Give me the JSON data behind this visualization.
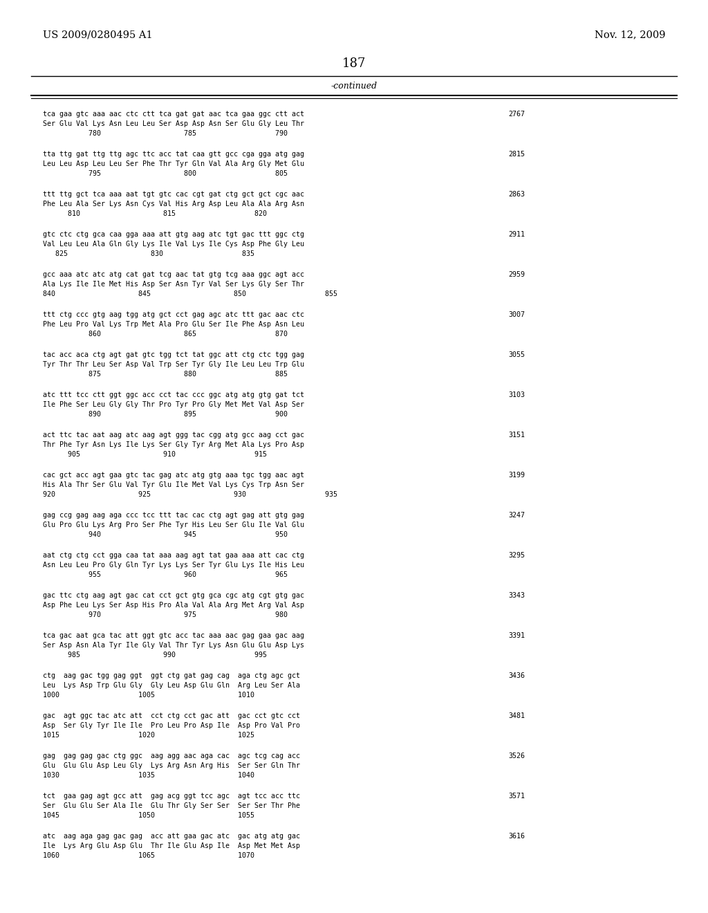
{
  "patent_number": "US 2009/0280495 A1",
  "date": "Nov. 12, 2009",
  "page_number": "187",
  "continued_label": "-continued",
  "background_color": "#ffffff",
  "text_color": "#000000",
  "sequence_blocks": [
    {
      "dna": "tca gaa gtc aaa aac ctc ctt tca gat gat aac tca gaa ggc ctt act",
      "aa": "Ser Glu Val Lys Asn Leu Leu Ser Asp Asp Asn Ser Glu Gly Leu Thr",
      "nums": "           780                    785                   790",
      "num_right": "2767"
    },
    {
      "dna": "tta ttg gat ttg ttg agc ttc acc tat caa gtt gcc cga gga atg gag",
      "aa": "Leu Leu Asp Leu Leu Ser Phe Thr Tyr Gln Val Ala Arg Gly Met Glu",
      "nums": "           795                    800                   805",
      "num_right": "2815"
    },
    {
      "dna": "ttt ttg gct tca aaa aat tgt gtc cac cgt gat ctg gct gct cgc aac",
      "aa": "Phe Leu Ala Ser Lys Asn Cys Val His Arg Asp Leu Ala Ala Arg Asn",
      "nums": "      810                    815                   820",
      "num_right": "2863"
    },
    {
      "dna": "gtc ctc ctg gca caa gga aaa att gtg aag atc tgt gac ttt ggc ctg",
      "aa": "Val Leu Leu Ala Gln Gly Lys Ile Val Lys Ile Cys Asp Phe Gly Leu",
      "nums": "   825                    830                   835",
      "num_right": "2911"
    },
    {
      "dna": "gcc aaa atc atc atg cat gat tcg aac tat gtg tcg aaa ggc agt acc",
      "aa": "Ala Lys Ile Ile Met His Asp Ser Asn Tyr Val Ser Lys Gly Ser Thr",
      "nums": "840                    845                    850                   855",
      "num_right": "2959"
    },
    {
      "dna": "ttt ctg ccc gtg aag tgg atg gct cct gag agc atc ttt gac aac ctc",
      "aa": "Phe Leu Pro Val Lys Trp Met Ala Pro Glu Ser Ile Phe Asp Asn Leu",
      "nums": "           860                    865                   870",
      "num_right": "3007"
    },
    {
      "dna": "tac acc aca ctg agt gat gtc tgg tct tat ggc att ctg ctc tgg gag",
      "aa": "Tyr Thr Thr Leu Ser Asp Val Trp Ser Tyr Gly Ile Leu Leu Trp Glu",
      "nums": "           875                    880                   885",
      "num_right": "3055"
    },
    {
      "dna": "atc ttt tcc ctt ggt ggc acc cct tac ccc ggc atg atg gtg gat tct",
      "aa": "Ile Phe Ser Leu Gly Gly Thr Pro Tyr Pro Gly Met Met Val Asp Ser",
      "nums": "           890                    895                   900",
      "num_right": "3103"
    },
    {
      "dna": "act ttc tac aat aag atc aag agt ggg tac cgg atg gcc aag cct gac",
      "aa": "Thr Phe Tyr Asn Lys Ile Lys Ser Gly Tyr Arg Met Ala Lys Pro Asp",
      "nums": "      905                    910                   915",
      "num_right": "3151"
    },
    {
      "dna": "cac gct acc agt gaa gtc tac gag atc atg gtg aaa tgc tgg aac agt",
      "aa": "His Ala Thr Ser Glu Val Tyr Glu Ile Met Val Lys Cys Trp Asn Ser",
      "nums": "920                    925                    930                   935",
      "num_right": "3199"
    },
    {
      "dna": "gag ccg gag aag aga ccc tcc ttt tac cac ctg agt gag att gtg gag",
      "aa": "Glu Pro Glu Lys Arg Pro Ser Phe Tyr His Leu Ser Glu Ile Val Glu",
      "nums": "           940                    945                   950",
      "num_right": "3247"
    },
    {
      "dna": "aat ctg ctg cct gga caa tat aaa aag agt tat gaa aaa att cac ctg",
      "aa": "Asn Leu Leu Pro Gly Gln Tyr Lys Lys Ser Tyr Glu Lys Ile His Leu",
      "nums": "           955                    960                   965",
      "num_right": "3295"
    },
    {
      "dna": "gac ttc ctg aag agt gac cat cct gct gtg gca cgc atg cgt gtg gac",
      "aa": "Asp Phe Leu Lys Ser Asp His Pro Ala Val Ala Arg Met Arg Val Asp",
      "nums": "           970                    975                   980",
      "num_right": "3343"
    },
    {
      "dna": "tca gac aat gca tac att ggt gtc acc tac aaa aac gag gaa gac aag",
      "aa": "Ser Asp Asn Ala Tyr Ile Gly Val Thr Tyr Lys Asn Glu Glu Asp Lys",
      "nums": "      985                    990                   995",
      "num_right": "3391"
    },
    {
      "dna": "ctg  aag gac tgg gag ggt  ggt ctg gat gag cag  aga ctg agc gct",
      "aa": "Leu  Lys Asp Trp Glu Gly  Gly Leu Asp Glu Gln  Arg Leu Ser Ala",
      "nums": "1000                   1005                    1010",
      "num_right": "3436"
    },
    {
      "dna": "gac  agt ggc tac atc att  cct ctg cct gac att  gac cct gtc cct",
      "aa": "Asp  Ser Gly Tyr Ile Ile  Pro Leu Pro Asp Ile  Asp Pro Val Pro",
      "nums": "1015                   1020                    1025",
      "num_right": "3481"
    },
    {
      "dna": "gag  gag gag gac ctg ggc  aag agg aac aga cac  agc tcg cag acc",
      "aa": "Glu  Glu Glu Asp Leu Gly  Lys Arg Asn Arg His  Ser Ser Gln Thr",
      "nums": "1030                   1035                    1040",
      "num_right": "3526"
    },
    {
      "dna": "tct  gaa gag agt gcc att  gag acg ggt tcc agc  agt tcc acc ttc",
      "aa": "Ser  Glu Glu Ser Ala Ile  Glu Thr Gly Ser Ser  Ser Ser Thr Phe",
      "nums": "1045                   1050                    1055",
      "num_right": "3571"
    },
    {
      "dna": "atc  aag aga gag gac gag  acc att gaa gac atc  gac atg atg gac",
      "aa": "Ile  Lys Arg Glu Asp Glu  Thr Ile Glu Asp Ile  Asp Met Met Asp",
      "nums": "1060                   1065                    1070",
      "num_right": "3616"
    }
  ]
}
